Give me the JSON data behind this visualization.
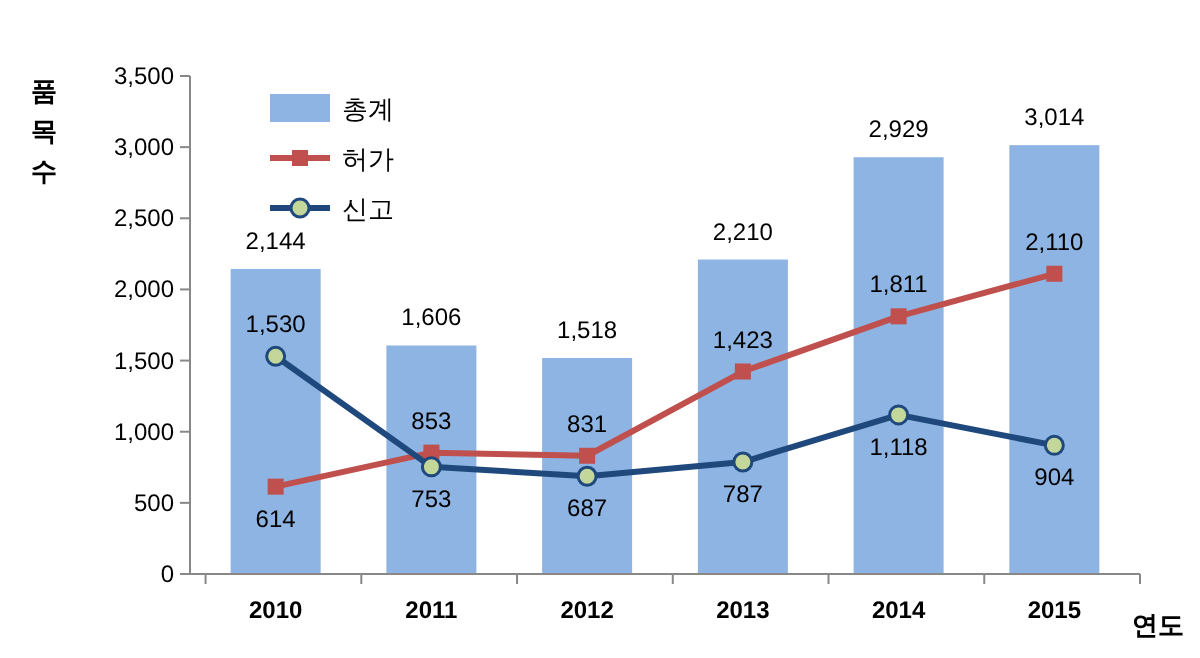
{
  "chart_data": {
    "type": "bar",
    "categories": [
      "2010",
      "2011",
      "2012",
      "2013",
      "2014",
      "2015"
    ],
    "xlabel": "연도",
    "ylabel": "품목수",
    "ylim": [
      0,
      3500
    ],
    "yticks": [
      0,
      500,
      {
        "value": 1000,
        "label": "1,000"
      },
      {
        "value": 1500,
        "label": "1,500"
      },
      {
        "value": 2000,
        "label": "2,000"
      },
      {
        "value": 2500,
        "label": "2,500"
      },
      {
        "value": 3000,
        "label": "3,000"
      },
      {
        "value": 3500,
        "label": "3,500"
      }
    ],
    "legend": "top left",
    "grid": false,
    "series": [
      {
        "name": "총계",
        "color": "#8db4e2",
        "values": [
          2144,
          1606,
          1518,
          2210,
          2929,
          3014
        ],
        "value_labels": [
          "2,144",
          "1,606",
          "1,518",
          "2,210",
          "2,929",
          "3,014"
        ]
      },
      {
        "name": "허가",
        "type": "line",
        "color": "#c0504d",
        "marker": "square",
        "values": [
          614,
          853,
          831,
          1423,
          1811,
          2110
        ],
        "value_labels": [
          "614",
          "853",
          "831",
          "1,423",
          "1,811",
          "2,110"
        ]
      },
      {
        "name": "신고",
        "type": "line",
        "color": "#1f497d",
        "marker": "circle",
        "values": [
          1530,
          753,
          687,
          787,
          1118,
          904
        ],
        "value_labels": [
          "1,530",
          "753",
          "687",
          "787",
          "1,118",
          "904"
        ]
      }
    ]
  }
}
